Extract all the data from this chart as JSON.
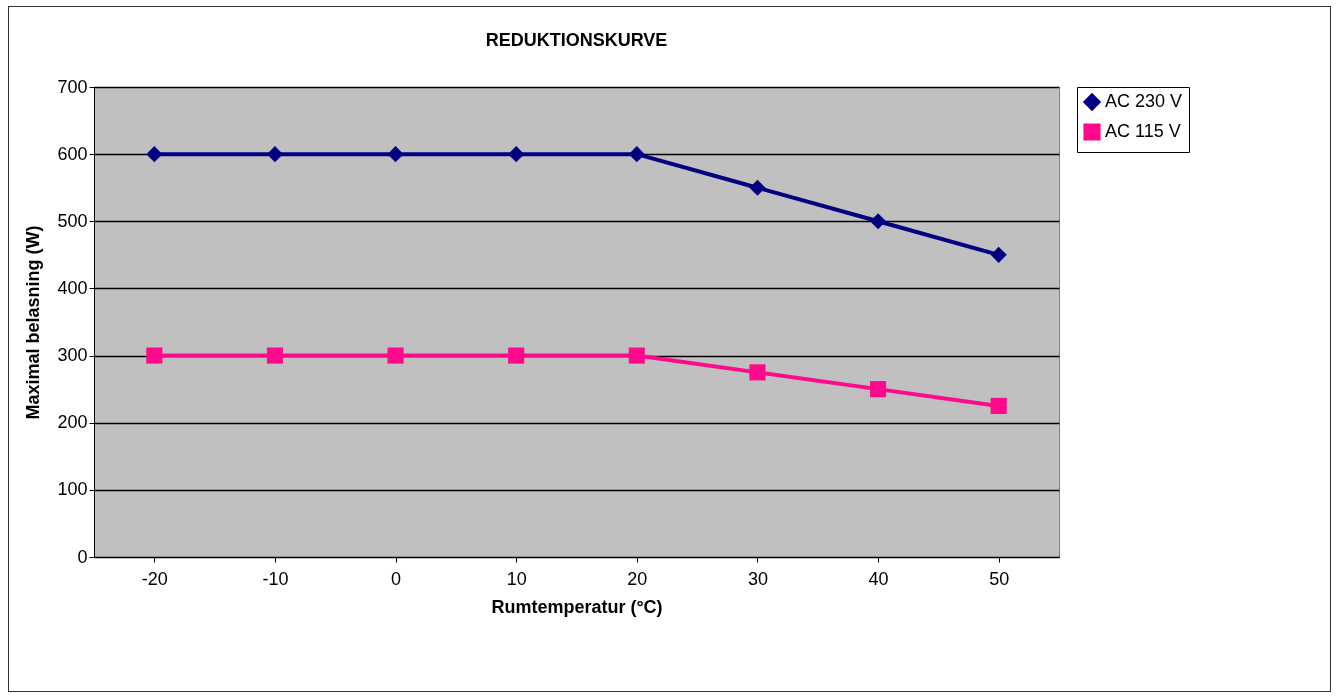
{
  "chart_data": {
    "type": "line",
    "title": "REDUKTIONSKURVE",
    "xlabel": "Rumtemperatur (°C)",
    "ylabel": "Maximal belasning (W)",
    "categories": [
      "-20",
      "-10",
      "0",
      "10",
      "20",
      "30",
      "40",
      "50"
    ],
    "series": [
      {
        "name": "AC 230 V",
        "color": "#000080",
        "marker": "diamond",
        "values": [
          600,
          600,
          600,
          600,
          600,
          550,
          500,
          450
        ]
      },
      {
        "name": "AC 115 V",
        "color": "#ff0a8c",
        "marker": "square",
        "values": [
          300,
          300,
          300,
          300,
          300,
          275,
          250,
          225
        ]
      }
    ],
    "ylim": [
      0,
      700
    ],
    "yticks": [
      0,
      100,
      200,
      300,
      400,
      500,
      600,
      700
    ],
    "grid": "y",
    "legend": "right"
  }
}
